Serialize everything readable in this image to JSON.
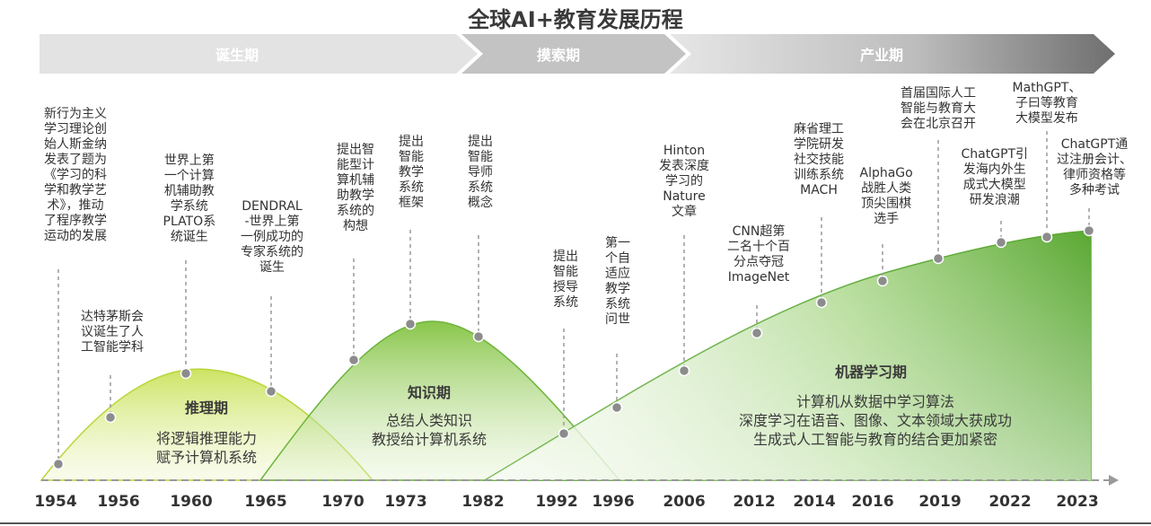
{
  "title": "全球AI+教育发展历程",
  "phases": [
    {
      "label": "诞生期"
    },
    {
      "label": "摸索期"
    },
    {
      "label": "产业期"
    }
  ],
  "years": [
    "1954",
    "1956",
    "1960",
    "1965",
    "1970",
    "1973",
    "1982",
    "1992",
    "1996",
    "2006",
    "2012",
    "2014",
    "2016",
    "2019",
    "2022",
    "2023"
  ],
  "eras": [
    {
      "title": "推理期",
      "lines": [
        "将逻辑推理能力",
        "赋予计算机系统"
      ]
    },
    {
      "title": "知识期",
      "lines": [
        "总结人类知识",
        "教授给计算机系统"
      ]
    },
    {
      "title": "机器学习期",
      "lines": [
        "计算机从数据中学习算法",
        "深度学习在语音、图像、文本领域大获成功",
        "生成式人工智能与教育的结合更加紧密"
      ]
    }
  ],
  "events": [
    {
      "lines": [
        "新行为主义",
        "学习理论创",
        "始人斯金纳",
        "发表了题为",
        "《学习的科",
        "学和教学艺",
        "术》，推动",
        "了程序教学",
        "运动的发展"
      ]
    },
    {
      "lines": [
        "达特茅斯会",
        "议诞生了人",
        "工智能学科"
      ]
    },
    {
      "lines": [
        "世界上第",
        "一个计算",
        "机辅助教",
        "学系统",
        "PLATO系",
        "统诞生"
      ]
    },
    {
      "lines": [
        "DENDRAL",
        "-世界上第",
        "一例成功的",
        "专家系统的",
        "诞生"
      ]
    },
    {
      "lines": [
        "提出智",
        "能型计",
        "算机辅",
        "助教学",
        "系统的",
        "构想"
      ]
    },
    {
      "lines": [
        "提出",
        "智能",
        "教学",
        "系统",
        "框架"
      ]
    },
    {
      "lines": [
        "提出",
        "智能",
        "导师",
        "系统",
        "概念"
      ]
    },
    {
      "lines": [
        "提出",
        "智能",
        "授导",
        "系统"
      ]
    },
    {
      "lines": [
        "第一",
        "个自",
        "适应",
        "教学",
        "系统",
        "问世"
      ]
    },
    {
      "lines": [
        "Hinton",
        "发表深度",
        "学习的",
        "Nature",
        "文章"
      ]
    },
    {
      "lines": [
        "CNN超第",
        "二名十个百",
        "分点夺冠",
        "ImageNet"
      ]
    },
    {
      "lines": [
        "麻省理工",
        "学院研发",
        "社交技能",
        "训练系统",
        "MACH"
      ]
    },
    {
      "lines": [
        "AlphaGo",
        "战胜人类",
        "顶尖围棋",
        "选手"
      ]
    },
    {
      "lines": [
        "首届国际人工",
        "智能与教育大",
        "会在北京召开"
      ]
    },
    {
      "lines": [
        "ChatGPT引",
        "发海内外生",
        "成式大模型",
        "研发浪潮"
      ]
    },
    {
      "lines": [
        "MathGPT、",
        "子曰等教育",
        "大模型发布"
      ]
    },
    {
      "lines": [
        "ChatGPT通",
        "过注册会计、",
        "律师资格等",
        "多种考试"
      ]
    }
  ],
  "colors": {
    "arrow_grey_light": "#e4e4e4",
    "arrow_grey_dark": "#7a7a7a",
    "curve_green_light": "#c8e04a",
    "curve_green_dark": "#5aa832",
    "dot": "#8c8c8c"
  }
}
